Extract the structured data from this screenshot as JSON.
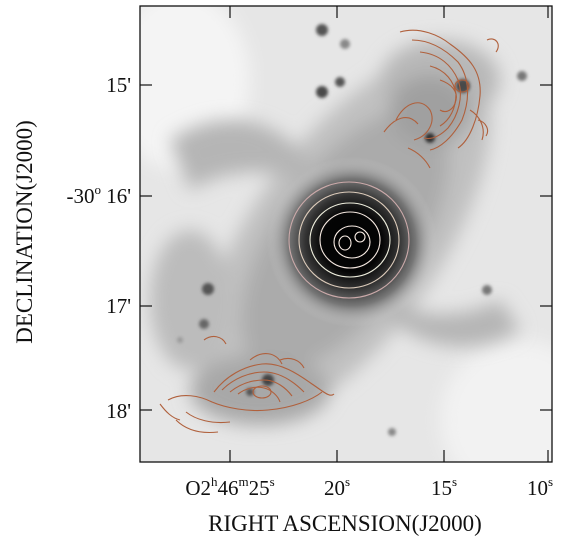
{
  "figure": {
    "ylabel": "DECLINATION(J2000)",
    "xlabel": "RIGHT ASCENSION(J2000)",
    "y_ticks": [
      {
        "pre": "",
        "deg": "",
        "val": "15'"
      },
      {
        "pre": "-30",
        "deg": "o",
        "val": " 16'"
      },
      {
        "pre": "",
        "deg": "",
        "val": "17'"
      },
      {
        "pre": "",
        "deg": "",
        "val": "18'"
      }
    ],
    "x_ticks": [
      {
        "parts": [
          [
            "O2",
            "n"
          ],
          [
            "h",
            "s"
          ],
          [
            "46",
            "n"
          ],
          [
            "m",
            "s"
          ],
          [
            "25",
            "n"
          ],
          [
            "s",
            "s"
          ]
        ]
      },
      {
        "parts": [
          [
            "20",
            "n"
          ],
          [
            "s",
            "s"
          ]
        ]
      },
      {
        "parts": [
          [
            "15",
            "n"
          ],
          [
            "s",
            "s"
          ]
        ]
      },
      {
        "parts": [
          [
            "10",
            "n"
          ],
          [
            "s",
            "s"
          ]
        ]
      }
    ],
    "contour_color": "#b0603c",
    "image_mode": "grayscale"
  }
}
